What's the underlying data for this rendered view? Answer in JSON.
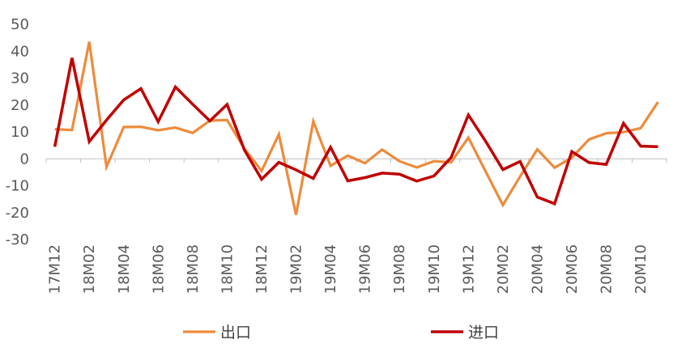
{
  "chart_data": {
    "type": "line",
    "x": [
      "17M12",
      "18M01",
      "18M02",
      "18M03",
      "18M04",
      "18M05",
      "18M06",
      "18M07",
      "18M08",
      "18M09",
      "18M10",
      "18M11",
      "18M12",
      "19M01",
      "19M02",
      "19M03",
      "19M04",
      "19M05",
      "19M06",
      "19M07",
      "19M08",
      "19M09",
      "19M10",
      "19M11",
      "19M12",
      "20M01",
      "20M02",
      "20M03",
      "20M04",
      "20M05",
      "20M06",
      "20M07",
      "20M08",
      "20M09",
      "20M10",
      "20M11"
    ],
    "xtick_labels": [
      "17M12",
      "18M02",
      "18M04",
      "18M06",
      "18M08",
      "18M10",
      "18M12",
      "19M02",
      "19M04",
      "19M06",
      "19M08",
      "19M10",
      "19M12",
      "20M02",
      "20M04",
      "20M06",
      "20M08",
      "20M10"
    ],
    "ylim": [
      -30,
      50
    ],
    "yticks": [
      50,
      40,
      30,
      20,
      10,
      0,
      -10,
      -20,
      -30
    ],
    "series": [
      {
        "name": "出口",
        "color": "#ED8B3C",
        "values": [
          11,
          10.7,
          43.5,
          -3,
          11.8,
          11.9,
          10.6,
          11.6,
          9.6,
          14.2,
          14.4,
          3.8,
          -4.5,
          9.1,
          -20.8,
          13.9,
          -2.6,
          1.2,
          -1.6,
          3.4,
          -0.9,
          -3.2,
          -0.9,
          -1.3,
          7.9,
          -4.7,
          -17.2,
          -6.6,
          3.5,
          -3.3,
          0.4,
          7.2,
          9.5,
          9.9,
          11.4,
          21.1
        ]
      },
      {
        "name": "进口",
        "color": "#C00000",
        "values": [
          4.5,
          37.5,
          6.4,
          14.4,
          21.9,
          26.1,
          13.8,
          26.7,
          20.3,
          14.1,
          20.2,
          3.3,
          -7.6,
          -1.3,
          -4.1,
          -7.3,
          4.3,
          -8.2,
          -7,
          -5.3,
          -5.7,
          -8.3,
          -6.4,
          0.5,
          16.3,
          6.5,
          -4,
          -1,
          -14.2,
          -16.7,
          2.7,
          -1.4,
          -2.1,
          13.2,
          4.7,
          4.5
        ]
      }
    ],
    "legend_position": "bottom",
    "grid": false
  }
}
